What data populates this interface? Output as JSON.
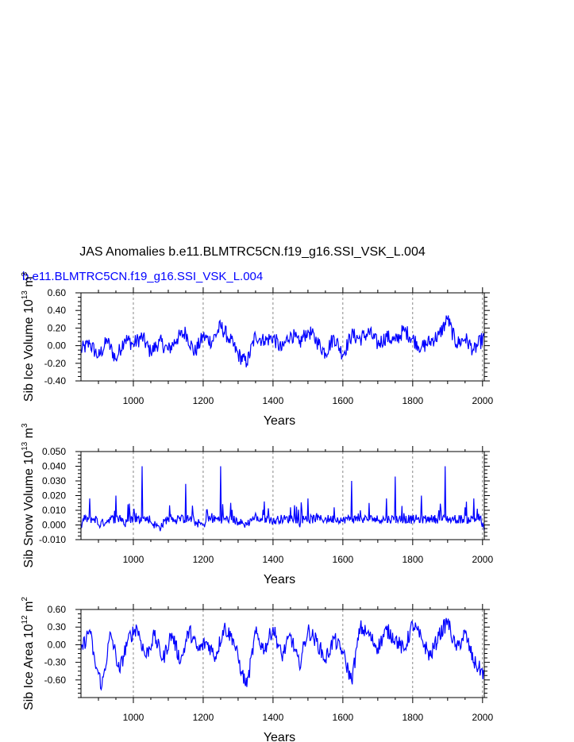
{
  "title": "JAS Anomalies b.e11.BLMTRC5CN.f19_g16.SSI_VSK_L.004",
  "subtitle": "b.e11.BLMTRC5CN.f19_g16.SSI_VSK_L.004",
  "line_color": "#0000ff",
  "chart_data": [
    {
      "type": "line",
      "xlabel": "Years",
      "ylabel_main": "Sib Ice Volume 10",
      "ylabel_exp": "13",
      "ylabel_unit": " m",
      "ylabel_unit_exp": "3",
      "xlim": [
        850,
        2005
      ],
      "ylim": [
        -0.4,
        0.6
      ],
      "xticks": [
        1000,
        1200,
        1400,
        1600,
        1800,
        2000
      ],
      "yticks": [
        "0.60",
        "0.40",
        "0.20",
        "0.00",
        "-0.20",
        "-0.40"
      ],
      "ytick_values": [
        0.6,
        0.4,
        0.2,
        0.0,
        -0.2,
        -0.4
      ],
      "grid": "dashed vertical at x ticks",
      "x": [
        850,
        875,
        900,
        925,
        950,
        975,
        1000,
        1025,
        1050,
        1075,
        1100,
        1125,
        1150,
        1175,
        1200,
        1225,
        1250,
        1275,
        1300,
        1325,
        1350,
        1375,
        1400,
        1425,
        1450,
        1475,
        1500,
        1525,
        1550,
        1575,
        1600,
        1625,
        1650,
        1675,
        1700,
        1725,
        1750,
        1775,
        1800,
        1825,
        1850,
        1875,
        1900,
        1925,
        1950,
        1975,
        2005
      ],
      "values": [
        -0.05,
        0.02,
        -0.12,
        0.05,
        -0.15,
        0.08,
        0.02,
        0.1,
        -0.08,
        0.05,
        -0.05,
        0.08,
        0.15,
        -0.08,
        0.1,
        0.05,
        0.22,
        0.08,
        -0.1,
        -0.2,
        0.12,
        0.05,
        0.1,
        -0.05,
        0.15,
        0.02,
        0.18,
        0.05,
        -0.08,
        0.1,
        -0.1,
        0.12,
        0.08,
        0.15,
        0.02,
        0.1,
        0.05,
        0.18,
        0.08,
        -0.02,
        0.05,
        0.12,
        0.3,
        0.02,
        0.08,
        -0.05,
        0.1
      ]
    },
    {
      "type": "line",
      "xlabel": "Years",
      "ylabel_main": "Sib Snow Volume 10",
      "ylabel_exp": "13",
      "ylabel_unit": " m",
      "ylabel_unit_exp": "3",
      "xlim": [
        850,
        2005
      ],
      "ylim": [
        -0.01,
        0.05
      ],
      "xticks": [
        1000,
        1200,
        1400,
        1600,
        1800,
        2000
      ],
      "yticks": [
        "0.050",
        "0.040",
        "0.030",
        "0.020",
        "0.010",
        "0.000",
        "-0.010"
      ],
      "ytick_values": [
        0.05,
        0.04,
        0.03,
        0.02,
        0.01,
        0.0,
        -0.01
      ],
      "grid": "dashed vertical at x ticks",
      "x": [
        850,
        875,
        900,
        925,
        950,
        975,
        1000,
        1025,
        1050,
        1075,
        1100,
        1125,
        1150,
        1175,
        1200,
        1225,
        1250,
        1275,
        1300,
        1325,
        1350,
        1375,
        1400,
        1425,
        1450,
        1475,
        1500,
        1525,
        1550,
        1575,
        1600,
        1625,
        1650,
        1675,
        1700,
        1725,
        1750,
        1775,
        1800,
        1825,
        1850,
        1875,
        1893,
        1925,
        1950,
        1975,
        2005
      ],
      "values": [
        -0.002,
        0.018,
        0.0,
        0.003,
        0.02,
        0.0,
        0.008,
        0.04,
        0.002,
        -0.002,
        0.005,
        0.003,
        0.028,
        0.002,
        0.0,
        0.008,
        0.04,
        0.005,
        0.002,
        0.0,
        0.008,
        0.016,
        0.002,
        0.005,
        0.012,
        0.0,
        0.018,
        0.008,
        0.005,
        0.012,
        0.002,
        0.03,
        0.01,
        0.015,
        0.003,
        0.018,
        0.033,
        0.008,
        0.003,
        0.02,
        0.005,
        0.01,
        0.04,
        0.003,
        0.012,
        0.018,
        -0.004
      ]
    },
    {
      "type": "line",
      "xlabel": "Years",
      "ylabel_main": "Sib Ice Area 10",
      "ylabel_exp": "12",
      "ylabel_unit": " m",
      "ylabel_unit_exp": "2",
      "xlim": [
        850,
        2005
      ],
      "ylim": [
        -0.9,
        0.6
      ],
      "xticks": [
        1000,
        1200,
        1400,
        1600,
        1800,
        2000
      ],
      "yticks": [
        "0.60",
        "0.30",
        "0.00",
        "-0.30",
        "-0.60"
      ],
      "ytick_values": [
        0.6,
        0.3,
        0.0,
        -0.3,
        -0.6
      ],
      "grid": "dashed vertical at x ticks",
      "x": [
        850,
        875,
        890,
        910,
        935,
        960,
        985,
        1010,
        1035,
        1060,
        1085,
        1110,
        1135,
        1160,
        1185,
        1210,
        1235,
        1260,
        1285,
        1310,
        1325,
        1350,
        1375,
        1400,
        1425,
        1450,
        1475,
        1500,
        1525,
        1550,
        1575,
        1600,
        1625,
        1650,
        1675,
        1700,
        1725,
        1750,
        1775,
        1800,
        1825,
        1850,
        1875,
        1900,
        1925,
        1950,
        1975,
        2005
      ],
      "values": [
        -0.1,
        0.25,
        -0.3,
        -0.7,
        0.2,
        -0.45,
        0.1,
        0.3,
        -0.2,
        0.15,
        -0.25,
        0.2,
        -0.3,
        0.25,
        -0.1,
        0.05,
        -0.2,
        0.3,
        0.1,
        -0.45,
        -0.72,
        0.2,
        -0.1,
        0.3,
        -0.2,
        0.15,
        -0.35,
        0.25,
        0.05,
        -0.25,
        0.1,
        -0.15,
        -0.62,
        0.3,
        0.15,
        -0.05,
        0.25,
        0.1,
        -0.1,
        0.35,
        0.1,
        -0.2,
        0.15,
        0.4,
        -0.1,
        0.2,
        -0.3,
        -0.5
      ]
    }
  ]
}
